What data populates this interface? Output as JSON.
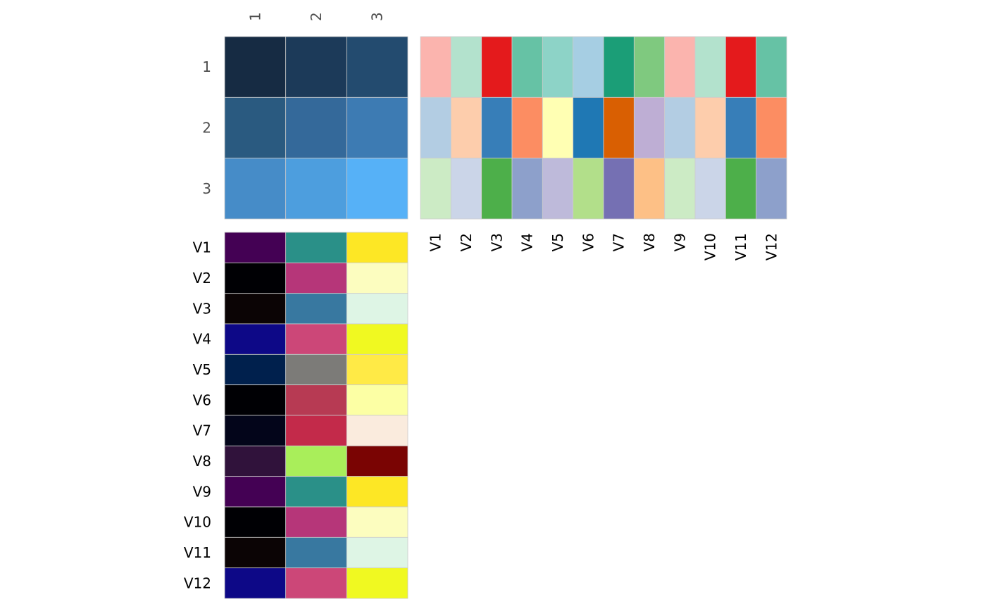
{
  "chart_data": [
    {
      "type": "heatmap",
      "panel": "top-left",
      "rows": [
        "1",
        "2",
        "3"
      ],
      "columns": [
        "1",
        "2",
        "3"
      ],
      "colors": [
        [
          "#162b43",
          "#1c3a59",
          "#234b6f"
        ],
        [
          "#2a5a80",
          "#34699a",
          "#3d7bb3"
        ],
        [
          "#468cc8",
          "#4d9ede",
          "#56b1f7"
        ]
      ]
    },
    {
      "type": "heatmap",
      "panel": "top-right",
      "rows": [
        "1",
        "2",
        "3"
      ],
      "columns": [
        "V1",
        "V2",
        "V3",
        "V4",
        "V5",
        "V6",
        "V7",
        "V8",
        "V9",
        "V10",
        "V11",
        "V12"
      ],
      "colors": [
        [
          "#fbb4ae",
          "#b3e2cd",
          "#e41a1c",
          "#66c2a5",
          "#8dd3c7",
          "#a6cee3",
          "#1b9e77",
          "#7fc97f",
          "#fbb4ae",
          "#b3e2cd",
          "#e41a1c",
          "#66c2a5"
        ],
        [
          "#b3cde3",
          "#fdcdac",
          "#377eb8",
          "#fc8d62",
          "#ffffb3",
          "#1f78b4",
          "#d95f02",
          "#beaed4",
          "#b3cde3",
          "#fdcdac",
          "#377eb8",
          "#fc8d62"
        ],
        [
          "#ccebc5",
          "#cbd5e8",
          "#4daf4a",
          "#8da0cb",
          "#bebada",
          "#b2df8a",
          "#7570b3",
          "#fdc086",
          "#ccebc5",
          "#cbd5e8",
          "#4daf4a",
          "#8da0cb"
        ]
      ]
    },
    {
      "type": "heatmap",
      "panel": "bottom-left",
      "rows": [
        "V1",
        "V2",
        "V3",
        "V4",
        "V5",
        "V6",
        "V7",
        "V8",
        "V9",
        "V10",
        "V11",
        "V12"
      ],
      "columns": [
        "1",
        "2",
        "3"
      ],
      "colors": [
        [
          "#440154",
          "#2a9088",
          "#fde725"
        ],
        [
          "#000004",
          "#b63679",
          "#fcfdbf"
        ],
        [
          "#0b0405",
          "#3878a0",
          "#def5e5"
        ],
        [
          "#0d0887",
          "#cc4778",
          "#f0f921"
        ],
        [
          "#00204d",
          "#7c7b78",
          "#ffea46"
        ],
        [
          "#000004",
          "#b73a53",
          "#fcffa4"
        ],
        [
          "#03051a",
          "#c32a4a",
          "#faebdd"
        ],
        [
          "#30123b",
          "#a9ee5a",
          "#7a0403"
        ],
        [
          "#440154",
          "#2a9088",
          "#fde725"
        ],
        [
          "#000004",
          "#b63679",
          "#fcfdbf"
        ],
        [
          "#0b0405",
          "#3878a0",
          "#def5e5"
        ],
        [
          "#0d0887",
          "#cc4778",
          "#f0f921"
        ]
      ]
    }
  ]
}
